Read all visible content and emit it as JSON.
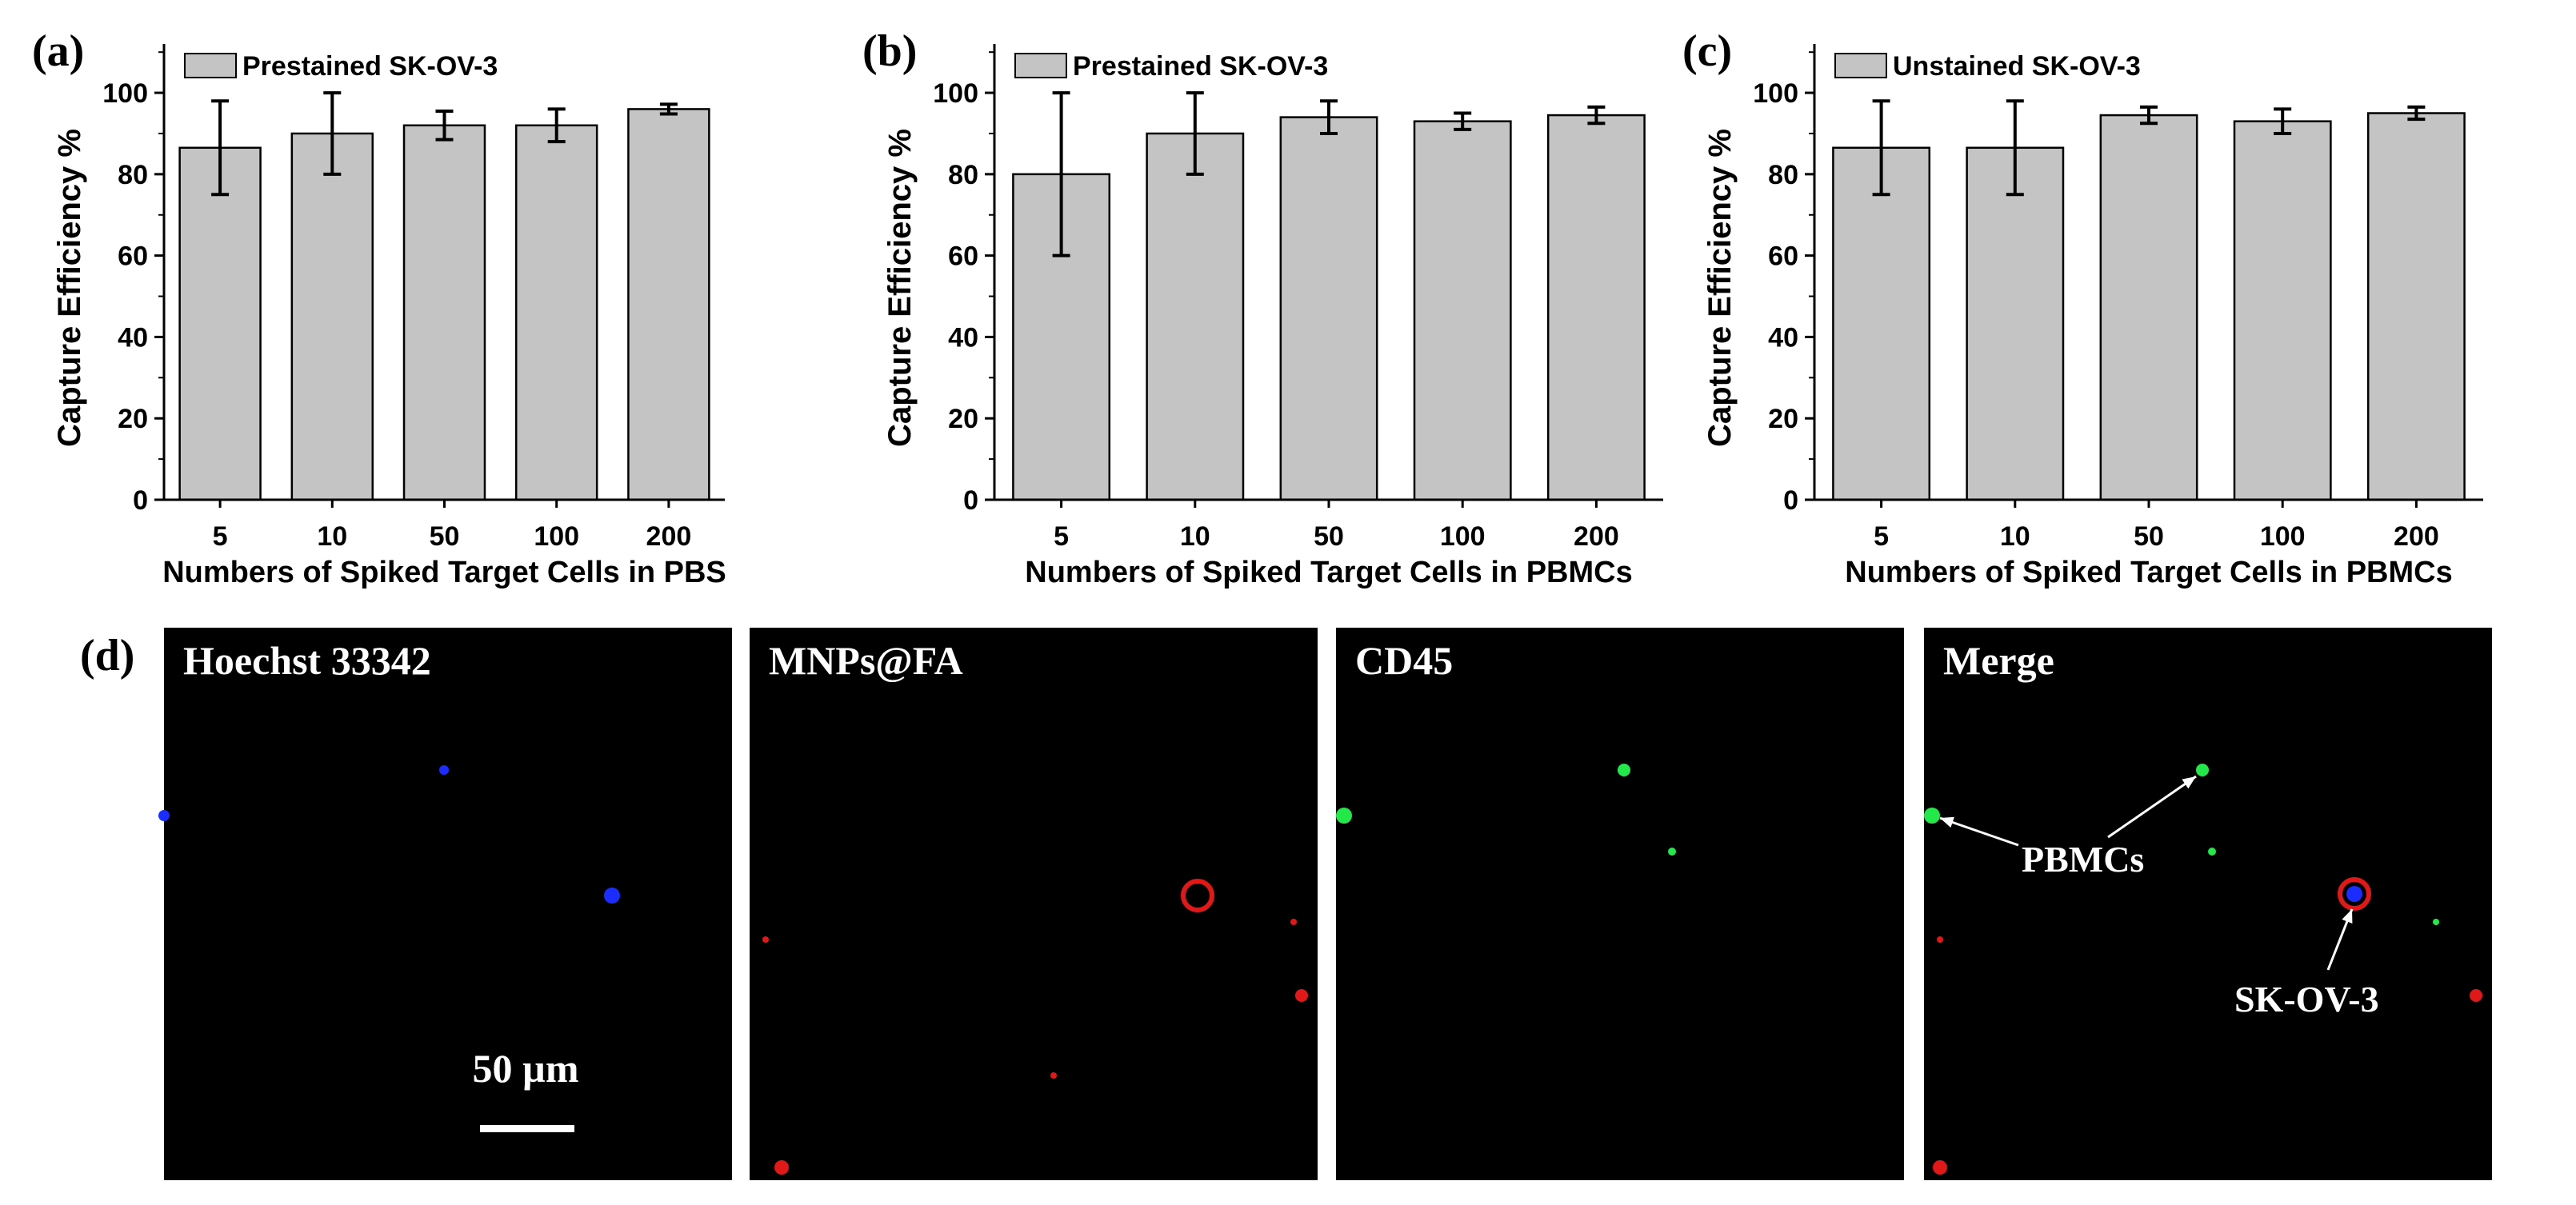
{
  "panel_labels": [
    "(a)",
    "(b)",
    "(c)",
    "(d)"
  ],
  "chart_data": [
    {
      "type": "bar",
      "panel": "(a)",
      "legend": "Prestained SK-OV-3",
      "legend_position": "top-left",
      "categories": [
        "5",
        "10",
        "50",
        "100",
        "200"
      ],
      "values": [
        86.5,
        90,
        92,
        92,
        96
      ],
      "errors": [
        11.5,
        10,
        3.5,
        4,
        1.2
      ],
      "xlabel": "Numbers of Spiked Target Cells in PBS",
      "ylabel": "Capture Efficiency %",
      "ylim": [
        0,
        112
      ],
      "yticks": [
        0,
        20,
        40,
        60,
        80,
        100
      ],
      "grid": false,
      "bar_color": "#c4c4c4"
    },
    {
      "type": "bar",
      "panel": "(b)",
      "legend": "Prestained SK-OV-3",
      "legend_position": "top-left",
      "categories": [
        "5",
        "10",
        "50",
        "100",
        "200"
      ],
      "values": [
        80,
        90,
        94,
        93,
        94.5
      ],
      "errors": [
        20,
        10,
        4,
        2,
        2
      ],
      "xlabel": "Numbers of Spiked Target Cells in PBMCs",
      "ylabel": "Capture Efficiency %",
      "ylim": [
        0,
        112
      ],
      "yticks": [
        0,
        20,
        40,
        60,
        80,
        100
      ],
      "grid": false,
      "bar_color": "#c4c4c4"
    },
    {
      "type": "bar",
      "panel": "(c)",
      "legend": "Unstained SK-OV-3",
      "legend_position": "top-left",
      "categories": [
        "5",
        "10",
        "50",
        "100",
        "200"
      ],
      "values": [
        86.5,
        86.5,
        94.5,
        93,
        95
      ],
      "errors": [
        11.5,
        11.5,
        2,
        3,
        1.5
      ],
      "xlabel": "Numbers of Spiked Target Cells in PBMCs",
      "ylabel": "Capture Efficiency %",
      "ylim": [
        0,
        112
      ],
      "yticks": [
        0,
        20,
        40,
        60,
        80,
        100
      ],
      "grid": false,
      "bar_color": "#c4c4c4"
    }
  ],
  "micrographs": {
    "panel_label": "(d)",
    "panels": [
      {
        "label": "Hoechst 33342"
      },
      {
        "label": "MNPs@FA"
      },
      {
        "label": "CD45"
      },
      {
        "label": "Merge"
      }
    ],
    "scale_bar": "50 µm",
    "annotations": [
      "PBMCs",
      "SK-OV-3"
    ],
    "colors": {
      "background": "#000000",
      "hoechst": "#1a2cff",
      "mnps": "#e01818",
      "cd45": "#22e84a",
      "label": "#ffffff"
    }
  }
}
